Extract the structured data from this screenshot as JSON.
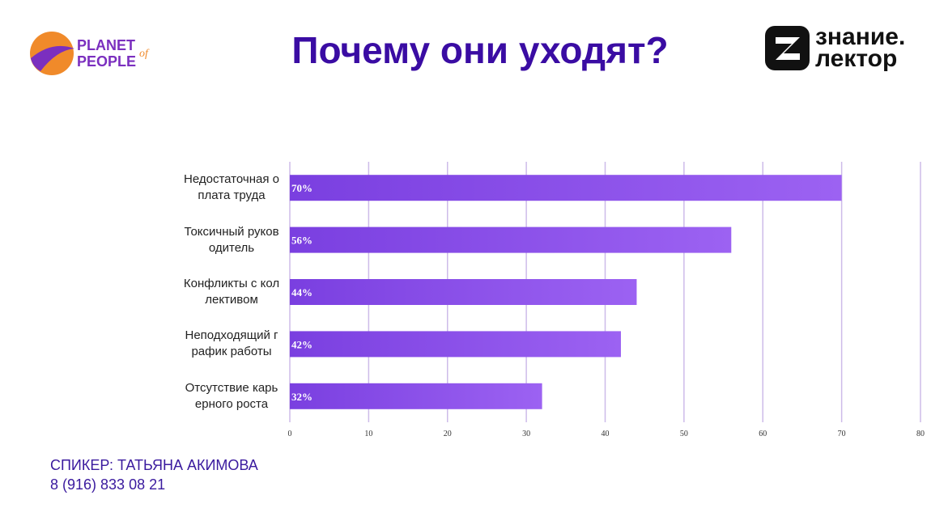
{
  "header": {
    "title": "Почему они уходят?",
    "logo_left": {
      "line1": "PLANET",
      "line2": "PEOPLE",
      "small": "of"
    },
    "logo_right": {
      "line1": "знание.",
      "line2": "лектор"
    }
  },
  "chart_data": {
    "type": "hbar",
    "categories": [
      "Недостаточная оплата труда",
      "Токсичный руководитель",
      "Конфликты с коллективом",
      "Неподходящий график работы",
      "Отсутствие карьерного роста"
    ],
    "values": [
      70,
      56,
      44,
      42,
      32
    ],
    "value_labels": [
      "70%",
      "56%",
      "44%",
      "42%",
      "32%"
    ],
    "color": "#8a4ded",
    "xlim": [
      0,
      80
    ],
    "xticks": [
      0,
      10,
      20,
      30,
      40,
      50,
      60,
      70,
      80
    ],
    "grid": true
  },
  "footer": {
    "speaker": "СПИКЕР: ТАТЬЯНА АКИМОВА",
    "phone": "8 (916) 833 08 21"
  }
}
